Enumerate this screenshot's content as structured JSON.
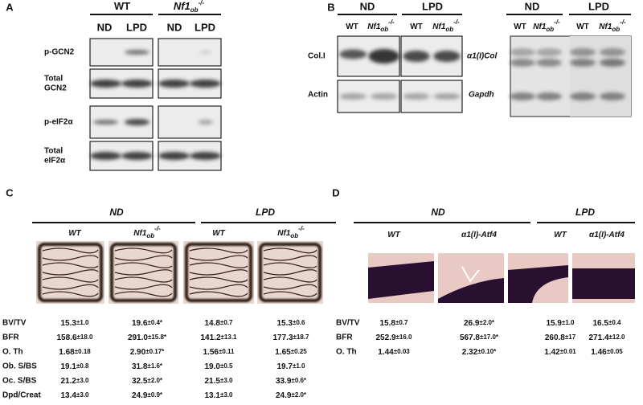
{
  "panel_a": {
    "label": "A",
    "groups": [
      {
        "name": "WT"
      },
      {
        "name": "Nf1",
        "sub": "ob",
        "sup": "-/-"
      }
    ],
    "columns": [
      "ND",
      "LPD",
      "ND",
      "LPD"
    ],
    "rows": [
      [
        "p-GCN2"
      ],
      [
        "Total",
        "GCN2"
      ],
      [
        "p-eIF2α"
      ],
      [
        "Total",
        "eIF2α"
      ]
    ]
  },
  "panel_b": {
    "label": "B",
    "left": {
      "groups": [
        "ND",
        "LPD"
      ],
      "columns": [
        {
          "name": "WT"
        },
        {
          "name": "Nf1",
          "sub": "ob",
          "sup": "-/-"
        },
        {
          "name": "WT"
        },
        {
          "name": "Nf1",
          "sub": "ob",
          "sup": "-/-"
        }
      ],
      "rows": [
        "Col.I",
        "Actin"
      ]
    },
    "right": {
      "groups": [
        "ND",
        "LPD"
      ],
      "columns": [
        {
          "name": "WT"
        },
        {
          "name": "Nf1",
          "sub": "ob",
          "sup": "-/-"
        },
        {
          "name": "WT"
        },
        {
          "name": "Nf1",
          "sub": "ob",
          "sup": "-/-"
        }
      ],
      "rows": [
        "α1(I)Col",
        "Gapdh"
      ]
    }
  },
  "panel_c": {
    "label": "C",
    "groups": [
      "ND",
      "LPD"
    ],
    "columns": [
      {
        "name": "WT"
      },
      {
        "name": "Nf1",
        "sub": "ob",
        "sup": "-/-"
      },
      {
        "name": "WT"
      },
      {
        "name": "Nf1",
        "sub": "ob",
        "sup": "-/-"
      }
    ],
    "rows": [
      {
        "name": "BV/TV",
        "cells": [
          [
            "15.3",
            "±1.0"
          ],
          [
            "19.6",
            "±0.4*"
          ],
          [
            "14.8",
            "±0.7"
          ],
          [
            "15.3",
            "±0.6"
          ]
        ]
      },
      {
        "name": "BFR",
        "cells": [
          [
            "158.6",
            "±18.0"
          ],
          [
            "291.0",
            "±15.8*"
          ],
          [
            "141.2",
            "±13.1"
          ],
          [
            "177.3",
            "±18.7"
          ]
        ]
      },
      {
        "name": "O. Th",
        "cells": [
          [
            "1.68",
            "±0.18"
          ],
          [
            "2.90",
            "±0.17*"
          ],
          [
            "1.56",
            "±0.11"
          ],
          [
            "1.65",
            "±0.25"
          ]
        ]
      },
      {
        "name": "Ob. S/BS",
        "cells": [
          [
            "19.1",
            "±0.8"
          ],
          [
            "31.8",
            "±1.6*"
          ],
          [
            "19.0",
            "±0.5"
          ],
          [
            "19.7",
            "±1.0"
          ]
        ]
      },
      {
        "name": "Oc. S/BS",
        "cells": [
          [
            "21.2",
            "±3.0"
          ],
          [
            "32.5",
            "±2.0*"
          ],
          [
            "21.5",
            "±3.0"
          ],
          [
            "33.9",
            "±0.6*"
          ]
        ]
      },
      {
        "name": "Dpd/Creat",
        "cells": [
          [
            "13.4",
            "±3.0"
          ],
          [
            "24.9",
            "±0.9*"
          ],
          [
            "13.1",
            "±3.0"
          ],
          [
            "24.9",
            "±2.0*"
          ]
        ]
      }
    ]
  },
  "panel_d": {
    "label": "D",
    "groups": [
      "ND",
      "LPD"
    ],
    "columns": [
      {
        "name": "WT"
      },
      {
        "name": "α1(I)-Atf4"
      },
      {
        "name": "WT"
      },
      {
        "name": "α1(I)-Atf4"
      }
    ],
    "rows": [
      {
        "name": "BV/TV",
        "cells": [
          [
            "15.8",
            "±0.7"
          ],
          [
            "26.9",
            "±2.0*"
          ],
          [
            "15.9",
            "±1.0"
          ],
          [
            "16.5",
            "±0.4"
          ]
        ]
      },
      {
        "name": "BFR",
        "cells": [
          [
            "252.9",
            "±16.0"
          ],
          [
            "567.8",
            "±17.0*"
          ],
          [
            "260.8",
            "±17"
          ],
          [
            "271.4",
            "±12.0"
          ]
        ]
      },
      {
        "name": "O. Th",
        "cells": [
          [
            "1.44",
            "±0.03"
          ],
          [
            "2.32",
            "±0.10*"
          ],
          [
            "1.42",
            "±0.01"
          ],
          [
            "1.46",
            "±0.05"
          ]
        ]
      }
    ]
  }
}
